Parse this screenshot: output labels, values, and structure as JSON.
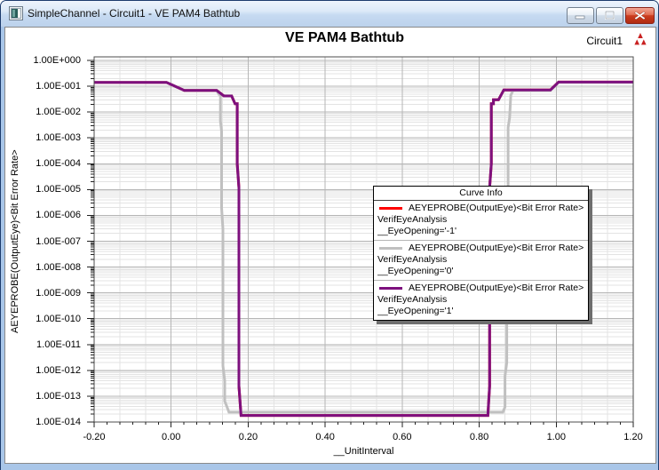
{
  "window": {
    "title": "SimpleChannel - Circuit1 - VE PAM4 Bathtub",
    "buttons": {
      "minimize": "minimize",
      "maximize": "maximize",
      "close": "close"
    }
  },
  "chart": {
    "title": "VE PAM4 Bathtub",
    "context_label": "Circuit1"
  },
  "legend": {
    "title": "Curve Info",
    "entries": [
      {
        "color": "#ff0000",
        "line1": "AEYEPROBE(OutputEye)<Bit Error Rate>",
        "line2": "VerifEyeAnalysis",
        "line3": "__EyeOpening='-1'"
      },
      {
        "color": "#c0c0c0",
        "line1": "AEYEPROBE(OutputEye)<Bit Error Rate>",
        "line2": "VerifEyeAnalysis",
        "line3": "__EyeOpening='0'"
      },
      {
        "color": "#7d107e",
        "line1": "AEYEPROBE(OutputEye)<Bit Error Rate>",
        "line2": "VerifEyeAnalysis",
        "line3": "__EyeOpening='1'"
      }
    ]
  },
  "chart_data": {
    "type": "line",
    "title": "VE PAM4 Bathtub",
    "xlabel": "__UnitInterval",
    "ylabel": "AEYEPROBE(OutputEye)<Bit Error Rate>",
    "x_log": false,
    "y_log": true,
    "xlim": [
      -0.2,
      1.2
    ],
    "ylim": [
      1e-14,
      1.0
    ],
    "grid": true,
    "legend_position": "center-right",
    "x_ticks": [
      -0.2,
      0.0,
      0.2,
      0.4,
      0.6,
      0.8,
      1.0,
      1.2
    ],
    "x_tick_labels": [
      "-0.20",
      "0.00",
      "0.20",
      "0.40",
      "0.60",
      "0.80",
      "1.00",
      "1.20"
    ],
    "y_tick_labels": [
      "1.00E+000",
      "1.00E-001",
      "1.00E-002",
      "1.00E-003",
      "1.00E-004",
      "1.00E-005",
      "1.00E-006",
      "1.00E-007",
      "1.00E-008",
      "1.00E-009",
      "1.00E-010",
      "1.00E-011",
      "1.00E-012",
      "1.00E-013",
      "1.00E-014"
    ],
    "colors": {
      "major_grid": "#b6b6b6",
      "minor_grid": "#e3e3e3",
      "plot_border": "#4d4d4d"
    },
    "series": [
      {
        "name": "AEYEPROBE(OutputEye)<Bit Error Rate> VerifEyeAnalysis __EyeOpening='-1'",
        "color": "#ff0000",
        "width": 3,
        "note": "coincident with __EyeOpening='1' curve (hidden beneath it)",
        "points": [
          [
            -0.2,
            0.14
          ],
          [
            -0.012,
            0.14
          ],
          [
            0.034,
            0.069
          ],
          [
            0.118,
            0.069
          ],
          [
            0.137,
            0.042
          ],
          [
            0.157,
            0.042
          ],
          [
            0.166,
            0.021
          ],
          [
            0.1715,
            0.021
          ],
          [
            0.1715,
            0.0001
          ],
          [
            0.176,
            1.2e-05
          ],
          [
            0.176,
            2.5e-13
          ],
          [
            0.1815,
            1.8e-14
          ],
          [
            0.8225,
            1.8e-14
          ],
          [
            0.827,
            2.5e-13
          ],
          [
            0.827,
            1.2e-05
          ],
          [
            0.8315,
            0.0001
          ],
          [
            0.8315,
            0.021
          ],
          [
            0.837,
            0.021
          ],
          [
            0.837,
            0.03
          ],
          [
            0.85,
            0.03
          ],
          [
            0.864,
            0.072
          ],
          [
            0.985,
            0.072
          ],
          [
            1.006,
            0.145
          ],
          [
            1.2,
            0.145
          ]
        ]
      },
      {
        "name": "AEYEPROBE(OutputEye)<Bit Error Rate> VerifEyeAnalysis __EyeOpening='0'",
        "color": "#c0c0c0",
        "width": 3,
        "points": [
          [
            -0.2,
            0.14
          ],
          [
            -0.012,
            0.14
          ],
          [
            0.034,
            0.069
          ],
          [
            0.118,
            0.069
          ],
          [
            0.124,
            0.048
          ],
          [
            0.128,
            0.048
          ],
          [
            0.128,
            0.0045
          ],
          [
            0.131,
            0.0018
          ],
          [
            0.131,
            2e-06
          ],
          [
            0.1345,
            3e-07
          ],
          [
            0.1345,
            1.5e-12
          ],
          [
            0.139,
            4e-13
          ],
          [
            0.139,
            6.5e-14
          ],
          [
            0.1445,
            4e-14
          ],
          [
            0.15,
            2.4e-14
          ],
          [
            0.8615,
            2.4e-14
          ],
          [
            0.867,
            3.8e-14
          ],
          [
            0.867,
            6e-13
          ],
          [
            0.8715,
            2e-12
          ],
          [
            0.8715,
            5e-07
          ],
          [
            0.875,
            3e-06
          ],
          [
            0.875,
            0.0025
          ],
          [
            0.879,
            0.006
          ],
          [
            0.882,
            0.045
          ],
          [
            0.888,
            0.069
          ],
          [
            0.985,
            0.069
          ],
          [
            1.006,
            0.14
          ],
          [
            1.2,
            0.14
          ]
        ]
      },
      {
        "name": "AEYEPROBE(OutputEye)<Bit Error Rate> VerifEyeAnalysis __EyeOpening='1'",
        "color": "#7d107e",
        "width": 3,
        "points": [
          [
            -0.2,
            0.14
          ],
          [
            -0.012,
            0.14
          ],
          [
            0.034,
            0.069
          ],
          [
            0.118,
            0.069
          ],
          [
            0.137,
            0.042
          ],
          [
            0.157,
            0.042
          ],
          [
            0.166,
            0.021
          ],
          [
            0.1715,
            0.021
          ],
          [
            0.1715,
            0.0001
          ],
          [
            0.176,
            1.2e-05
          ],
          [
            0.176,
            2.5e-13
          ],
          [
            0.1815,
            1.8e-14
          ],
          [
            0.8225,
            1.8e-14
          ],
          [
            0.827,
            2.5e-13
          ],
          [
            0.827,
            1.2e-05
          ],
          [
            0.8315,
            0.0001
          ],
          [
            0.8315,
            0.021
          ],
          [
            0.837,
            0.021
          ],
          [
            0.837,
            0.03
          ],
          [
            0.85,
            0.03
          ],
          [
            0.864,
            0.072
          ],
          [
            0.985,
            0.072
          ],
          [
            1.006,
            0.145
          ],
          [
            1.2,
            0.145
          ]
        ]
      }
    ]
  }
}
